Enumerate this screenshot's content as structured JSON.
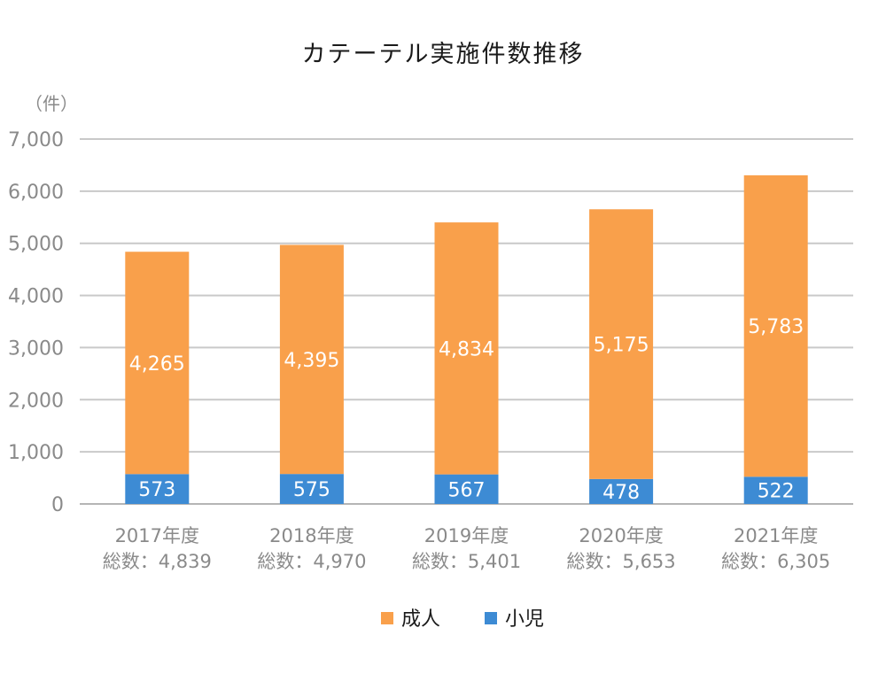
{
  "chart_data": {
    "type": "bar",
    "stacked": true,
    "title": "カテーテル実施件数推移",
    "ylabel": "（件）",
    "ylim": [
      0,
      7000
    ],
    "yticks": [
      "0",
      "1,000",
      "2,000",
      "3,000",
      "4,000",
      "5,000",
      "6,000",
      "7,000"
    ],
    "grid": true,
    "legend_position": "bottom",
    "categories": [
      "2017年度",
      "2018年度",
      "2019年度",
      "2020年度",
      "2021年度"
    ],
    "totals": [
      "総数：4,839",
      "総数：4,970",
      "総数：5,401",
      "総数：5,653",
      "総数：6,305"
    ],
    "series": [
      {
        "name": "小児",
        "color": "#3d8bd4",
        "values": [
          573,
          575,
          567,
          478,
          522
        ],
        "labels": [
          "573",
          "575",
          "567",
          "478",
          "522"
        ]
      },
      {
        "name": "成人",
        "color": "#f9a04b",
        "values": [
          4265,
          4395,
          4834,
          5175,
          5783
        ],
        "labels": [
          "4,265",
          "4,395",
          "4,834",
          "5,175",
          "5,783"
        ]
      }
    ],
    "legend_order": [
      "成人",
      "小児"
    ]
  }
}
